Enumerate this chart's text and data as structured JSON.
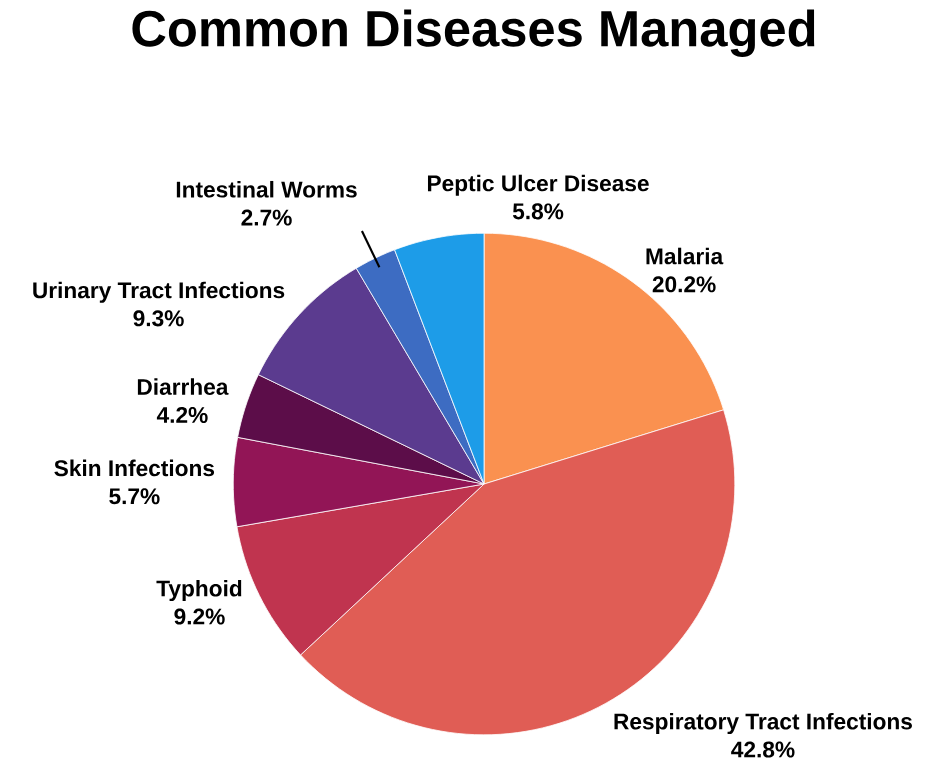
{
  "chart_data": {
    "type": "pie",
    "title": "Common Diseases Managed",
    "categories": [
      "Malaria",
      "Respiratory Tract Infections",
      "Typhoid",
      "Skin Infections",
      "Diarrhea",
      "Urinary Tract Infections",
      "Intestinal Worms",
      "Peptic Ulcer Disease"
    ],
    "values": [
      20.2,
      42.8,
      9.2,
      5.7,
      4.2,
      9.3,
      2.7,
      5.8
    ],
    "value_labels": [
      "20.2%",
      "42.8%",
      "9.2%",
      "5.7%",
      "4.2%",
      "9.3%",
      "2.7%",
      "5.8%"
    ],
    "colors": [
      "#fa9150",
      "#e05d55",
      "#c0344f",
      "#921556",
      "#5c0d49",
      "#5b3b8f",
      "#3d6cc2",
      "#1d9ce8"
    ]
  }
}
